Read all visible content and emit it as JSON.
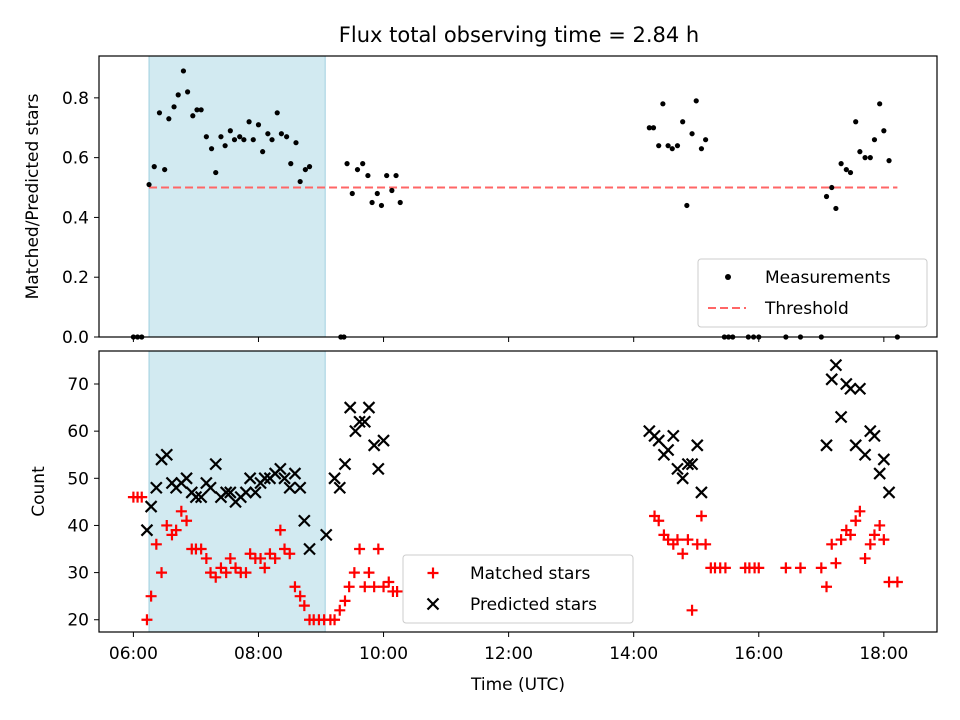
{
  "chart_data": {
    "type": "scatter",
    "title": "Flux total observing time = 2.84 h",
    "xlabel": "Time (UTC)",
    "x_unit": "hours UTC",
    "xlim": [
      "05:27",
      "18:51"
    ],
    "x_ticks": [
      "06:00",
      "08:00",
      "10:00",
      "12:00",
      "14:00",
      "16:00",
      "18:00"
    ],
    "shaded_span": {
      "start": "06:15",
      "end": "09:04",
      "color": "#add8e6"
    },
    "top": {
      "ylabel": "Matched/Predicted stars",
      "ylim": [
        0,
        0.94
      ],
      "y_ticks": [
        "0.0",
        "0.2",
        "0.4",
        "0.6",
        "0.8"
      ],
      "legend_position": "lower-right",
      "series": [
        {
          "name": "Measurements",
          "marker": "dot",
          "color": "#000000",
          "points": [
            [
              "06:00",
              0
            ],
            [
              "06:04",
              0
            ],
            [
              "06:08",
              0
            ],
            [
              "06:15",
              0.51
            ],
            [
              "06:20",
              0.57
            ],
            [
              "06:25",
              0.75
            ],
            [
              "06:30",
              0.56
            ],
            [
              "06:34",
              0.73
            ],
            [
              "06:39",
              0.77
            ],
            [
              "06:43",
              0.81
            ],
            [
              "06:48",
              0.89
            ],
            [
              "06:52",
              0.82
            ],
            [
              "06:57",
              0.74
            ],
            [
              "07:01",
              0.76
            ],
            [
              "07:05",
              0.76
            ],
            [
              "07:10",
              0.67
            ],
            [
              "07:15",
              0.63
            ],
            [
              "07:19",
              0.55
            ],
            [
              "07:24",
              0.67
            ],
            [
              "07:28",
              0.64
            ],
            [
              "07:33",
              0.69
            ],
            [
              "07:37",
              0.66
            ],
            [
              "07:42",
              0.67
            ],
            [
              "07:46",
              0.66
            ],
            [
              "07:51",
              0.72
            ],
            [
              "07:55",
              0.66
            ],
            [
              "08:00",
              0.71
            ],
            [
              "08:04",
              0.62
            ],
            [
              "08:09",
              0.68
            ],
            [
              "08:13",
              0.66
            ],
            [
              "08:18",
              0.75
            ],
            [
              "08:22",
              0.68
            ],
            [
              "08:27",
              0.67
            ],
            [
              "08:31",
              0.58
            ],
            [
              "08:36",
              0.65
            ],
            [
              "08:40",
              0.52
            ],
            [
              "08:45",
              0.56
            ],
            [
              "08:49",
              0.57
            ],
            [
              "09:19",
              0
            ],
            [
              "09:22",
              0
            ],
            [
              "09:25",
              0.58
            ],
            [
              "09:30",
              0.48
            ],
            [
              "09:35",
              0.56
            ],
            [
              "09:40",
              0.58
            ],
            [
              "09:45",
              0.54
            ],
            [
              "09:49",
              0.45
            ],
            [
              "09:54",
              0.48
            ],
            [
              "09:58",
              0.44
            ],
            [
              "10:03",
              0.54
            ],
            [
              "10:08",
              0.49
            ],
            [
              "10:12",
              0.54
            ],
            [
              "10:16",
              0.45
            ],
            [
              "14:15",
              0.7
            ],
            [
              "14:19",
              0.7
            ],
            [
              "14:24",
              0.64
            ],
            [
              "14:28",
              0.78
            ],
            [
              "14:33",
              0.64
            ],
            [
              "14:37",
              0.63
            ],
            [
              "14:42",
              0.64
            ],
            [
              "14:47",
              0.72
            ],
            [
              "14:51",
              0.44
            ],
            [
              "14:56",
              0.68
            ],
            [
              "15:00",
              0.79
            ],
            [
              "15:05",
              0.63
            ],
            [
              "15:09",
              0.66
            ],
            [
              "15:27",
              0
            ],
            [
              "15:31",
              0
            ],
            [
              "15:35",
              0
            ],
            [
              "15:50",
              0
            ],
            [
              "15:55",
              0
            ],
            [
              "16:00",
              0
            ],
            [
              "16:26",
              0
            ],
            [
              "16:40",
              0
            ],
            [
              "17:00",
              0
            ],
            [
              "17:05",
              0.47
            ],
            [
              "17:10",
              0.5
            ],
            [
              "17:14",
              0.43
            ],
            [
              "17:19",
              0.58
            ],
            [
              "17:24",
              0.56
            ],
            [
              "17:28",
              0.55
            ],
            [
              "17:33",
              0.72
            ],
            [
              "17:37",
              0.62
            ],
            [
              "17:42",
              0.6
            ],
            [
              "17:47",
              0.6
            ],
            [
              "17:51",
              0.66
            ],
            [
              "17:56",
              0.78
            ],
            [
              "18:00",
              0.69
            ],
            [
              "18:05",
              0.59
            ],
            [
              "18:13",
              0
            ]
          ]
        },
        {
          "name": "Threshold",
          "style": "dashed",
          "color": "#ff6666",
          "points": [
            [
              "06:15",
              0.5
            ],
            [
              "18:13",
              0.5
            ]
          ]
        }
      ]
    },
    "bottom": {
      "ylabel": "Count",
      "ylim": [
        17.4,
        77.0
      ],
      "y_ticks": [
        "20",
        "30",
        "40",
        "50",
        "60",
        "70"
      ],
      "legend_position": "lower-center",
      "series": [
        {
          "name": "Matched stars",
          "marker": "plus",
          "color": "#ff0000",
          "points": [
            [
              "06:00",
              46
            ],
            [
              "06:04",
              46
            ],
            [
              "06:08",
              46
            ],
            [
              "06:13",
              20
            ],
            [
              "06:17",
              25
            ],
            [
              "06:22",
              36
            ],
            [
              "06:27",
              30
            ],
            [
              "06:32",
              40
            ],
            [
              "06:37",
              38
            ],
            [
              "06:41",
              39
            ],
            [
              "06:46",
              43
            ],
            [
              "06:51",
              41
            ],
            [
              "06:56",
              35
            ],
            [
              "07:00",
              35
            ],
            [
              "07:05",
              35
            ],
            [
              "07:10",
              33
            ],
            [
              "07:14",
              30
            ],
            [
              "07:19",
              29
            ],
            [
              "07:24",
              31
            ],
            [
              "07:29",
              30
            ],
            [
              "07:33",
              33
            ],
            [
              "07:38",
              31
            ],
            [
              "07:43",
              30
            ],
            [
              "07:48",
              30
            ],
            [
              "07:52",
              34
            ],
            [
              "07:57",
              33
            ],
            [
              "08:02",
              33
            ],
            [
              "08:06",
              31
            ],
            [
              "08:11",
              34
            ],
            [
              "08:16",
              33
            ],
            [
              "08:21",
              39
            ],
            [
              "08:25",
              35
            ],
            [
              "08:30",
              34
            ],
            [
              "08:35",
              27
            ],
            [
              "08:40",
              25
            ],
            [
              "08:44",
              23
            ],
            [
              "08:49",
              20
            ],
            [
              "08:53",
              20
            ],
            [
              "08:58",
              20
            ],
            [
              "09:03",
              20
            ],
            [
              "09:09",
              20
            ],
            [
              "09:13",
              20
            ],
            [
              "09:18",
              22
            ],
            [
              "09:23",
              24
            ],
            [
              "09:27",
              27
            ],
            [
              "09:32",
              30
            ],
            [
              "09:37",
              35
            ],
            [
              "09:42",
              27
            ],
            [
              "09:46",
              30
            ],
            [
              "09:51",
              27
            ],
            [
              "09:55",
              35
            ],
            [
              "10:00",
              27
            ],
            [
              "10:05",
              28
            ],
            [
              "10:09",
              26
            ],
            [
              "10:13",
              26
            ],
            [
              "14:20",
              42
            ],
            [
              "14:24",
              41
            ],
            [
              "14:29",
              38
            ],
            [
              "14:33",
              37
            ],
            [
              "14:38",
              36
            ],
            [
              "14:42",
              37
            ],
            [
              "14:47",
              34
            ],
            [
              "14:52",
              37
            ],
            [
              "14:56",
              22
            ],
            [
              "15:01",
              36
            ],
            [
              "15:05",
              42
            ],
            [
              "15:09",
              36
            ],
            [
              "15:14",
              31
            ],
            [
              "15:18",
              31
            ],
            [
              "15:23",
              31
            ],
            [
              "15:28",
              31
            ],
            [
              "15:47",
              31
            ],
            [
              "15:51",
              31
            ],
            [
              "15:56",
              31
            ],
            [
              "16:00",
              31
            ],
            [
              "16:26",
              31
            ],
            [
              "16:40",
              31
            ],
            [
              "17:00",
              31
            ],
            [
              "17:05",
              27
            ],
            [
              "17:10",
              36
            ],
            [
              "17:14",
              32
            ],
            [
              "17:19",
              37
            ],
            [
              "17:24",
              39
            ],
            [
              "17:28",
              38
            ],
            [
              "17:33",
              41
            ],
            [
              "17:37",
              43
            ],
            [
              "17:42",
              33
            ],
            [
              "17:47",
              36
            ],
            [
              "17:51",
              38
            ],
            [
              "17:56",
              40
            ],
            [
              "18:00",
              37
            ],
            [
              "18:05",
              28
            ],
            [
              "18:13",
              28
            ]
          ]
        },
        {
          "name": "Predicted stars",
          "marker": "x",
          "color": "#000000",
          "points": [
            [
              "06:13",
              39
            ],
            [
              "06:17",
              44
            ],
            [
              "06:22",
              48
            ],
            [
              "06:27",
              54
            ],
            [
              "06:32",
              55
            ],
            [
              "06:37",
              49
            ],
            [
              "06:41",
              48
            ],
            [
              "06:46",
              49
            ],
            [
              "06:51",
              50
            ],
            [
              "06:56",
              47
            ],
            [
              "07:00",
              46
            ],
            [
              "07:05",
              46
            ],
            [
              "07:10",
              49
            ],
            [
              "07:14",
              48
            ],
            [
              "07:19",
              53
            ],
            [
              "07:24",
              46
            ],
            [
              "07:29",
              47
            ],
            [
              "07:33",
              47
            ],
            [
              "07:38",
              45
            ],
            [
              "07:43",
              46
            ],
            [
              "07:48",
              47
            ],
            [
              "07:52",
              50
            ],
            [
              "07:57",
              47
            ],
            [
              "08:02",
              49
            ],
            [
              "08:06",
              50
            ],
            [
              "08:11",
              50
            ],
            [
              "08:16",
              51
            ],
            [
              "08:21",
              52
            ],
            [
              "08:25",
              50
            ],
            [
              "08:30",
              48
            ],
            [
              "08:35",
              51
            ],
            [
              "08:40",
              48
            ],
            [
              "08:44",
              41
            ],
            [
              "08:49",
              35
            ],
            [
              "09:05",
              38
            ],
            [
              "09:13",
              50
            ],
            [
              "09:18",
              48
            ],
            [
              "09:23",
              53
            ],
            [
              "09:28",
              65
            ],
            [
              "09:33",
              60
            ],
            [
              "09:37",
              62
            ],
            [
              "09:42",
              62
            ],
            [
              "09:46",
              65
            ],
            [
              "09:51",
              57
            ],
            [
              "09:55",
              52
            ],
            [
              "10:00",
              58
            ],
            [
              "14:15",
              60
            ],
            [
              "14:20",
              59
            ],
            [
              "14:24",
              58
            ],
            [
              "14:29",
              55
            ],
            [
              "14:33",
              56
            ],
            [
              "14:38",
              59
            ],
            [
              "14:42",
              52
            ],
            [
              "14:47",
              50
            ],
            [
              "14:52",
              53
            ],
            [
              "14:56",
              53
            ],
            [
              "15:01",
              57
            ],
            [
              "15:05",
              47
            ],
            [
              "17:05",
              57
            ],
            [
              "17:10",
              71
            ],
            [
              "17:14",
              74
            ],
            [
              "17:19",
              63
            ],
            [
              "17:24",
              70
            ],
            [
              "17:28",
              69
            ],
            [
              "17:33",
              57
            ],
            [
              "17:37",
              69
            ],
            [
              "17:42",
              55
            ],
            [
              "17:47",
              60
            ],
            [
              "17:51",
              59
            ],
            [
              "17:56",
              51
            ],
            [
              "18:00",
              54
            ],
            [
              "18:05",
              47
            ]
          ]
        }
      ]
    }
  }
}
